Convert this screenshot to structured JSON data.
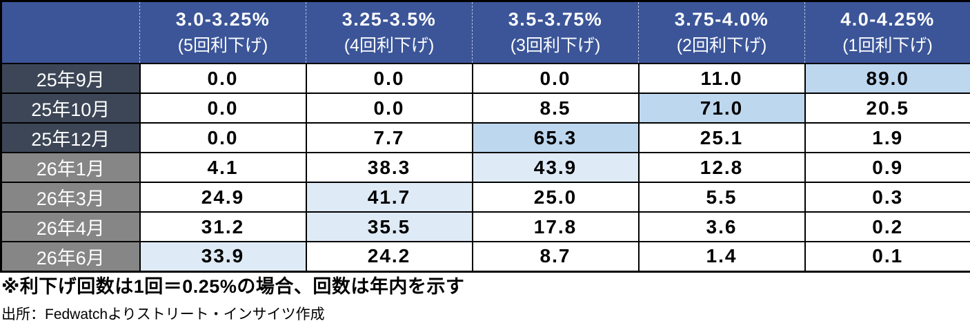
{
  "chart_data": {
    "type": "table",
    "columns": [
      {
        "rate": "3.0-3.25%",
        "cuts": "(5回利下げ)"
      },
      {
        "rate": "3.25-3.5%",
        "cuts": "(4回利下げ)"
      },
      {
        "rate": "3.5-3.75%",
        "cuts": "(3回利下げ)"
      },
      {
        "rate": "3.75-4.0%",
        "cuts": "(2回利下げ)"
      },
      {
        "rate": "4.0-4.25%",
        "cuts": "(1回利下げ)"
      }
    ],
    "rows": [
      {
        "label": "25年9月",
        "group": "2025",
        "values": [
          "0.0",
          "0.0",
          "0.0",
          "11.0",
          "89.0"
        ],
        "highlights": [
          "",
          "",
          "",
          "",
          "strong"
        ]
      },
      {
        "label": "25年10月",
        "group": "2025",
        "values": [
          "0.0",
          "0.0",
          "8.5",
          "71.0",
          "20.5"
        ],
        "highlights": [
          "",
          "",
          "",
          "strong",
          ""
        ]
      },
      {
        "label": "25年12月",
        "group": "2025",
        "values": [
          "0.0",
          "7.7",
          "65.3",
          "25.1",
          "1.9"
        ],
        "highlights": [
          "",
          "",
          "strong",
          "",
          ""
        ]
      },
      {
        "label": "26年1月",
        "group": "2026",
        "values": [
          "4.1",
          "38.3",
          "43.9",
          "12.8",
          "0.9"
        ],
        "highlights": [
          "",
          "",
          "light",
          "",
          ""
        ]
      },
      {
        "label": "26年3月",
        "group": "2026",
        "values": [
          "24.9",
          "41.7",
          "25.0",
          "5.5",
          "0.3"
        ],
        "highlights": [
          "",
          "light",
          "",
          "",
          ""
        ]
      },
      {
        "label": "26年4月",
        "group": "2026",
        "values": [
          "31.2",
          "35.5",
          "17.8",
          "3.6",
          "0.2"
        ],
        "highlights": [
          "",
          "light",
          "",
          "",
          ""
        ]
      },
      {
        "label": "26年6月",
        "group": "2026",
        "values": [
          "33.9",
          "24.2",
          "8.7",
          "1.4",
          "0.1"
        ],
        "highlights": [
          "light",
          "",
          "",
          "",
          ""
        ]
      }
    ],
    "footnote": "※利下げ回数は1回＝0.25%の場合、回数は年内を示す",
    "source": "出所：Fedwatchよりストリート・インサイツ作成"
  },
  "colors": {
    "header_bg": "#3B5598",
    "label_2025_bg": "#3C4656",
    "label_2026_bg": "#868686",
    "highlight_strong": "#BDD7EE",
    "highlight_light": "#DEEAF6",
    "border": "#000000"
  }
}
